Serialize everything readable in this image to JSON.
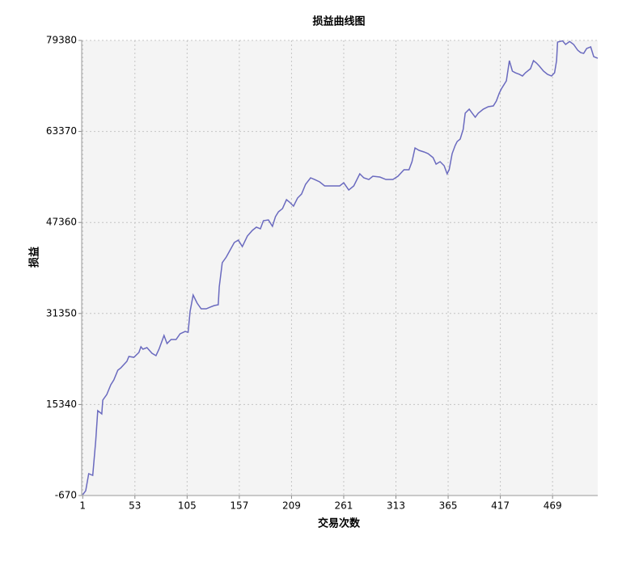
{
  "chart_data": {
    "type": "line",
    "title": "损益曲线图",
    "x_label": "交易次数",
    "y_label": "损益",
    "color": "#6a6abf",
    "grid": true,
    "xlim": [
      0,
      514
    ],
    "xticks": [
      1,
      53,
      105,
      157,
      209,
      261,
      313,
      365,
      417,
      469
    ],
    "ylim": [
      -670,
      79380
    ],
    "yticks": [
      -670,
      15340,
      31350,
      47360,
      63370,
      79380
    ],
    "x": [
      1,
      4,
      7,
      11,
      14,
      16,
      20,
      21,
      25,
      29,
      32,
      36,
      39,
      45,
      47,
      52,
      57,
      59,
      61,
      65,
      70,
      74,
      77,
      82,
      85,
      89,
      94,
      98,
      103,
      106,
      108,
      111,
      115,
      119,
      124,
      128,
      132,
      136,
      137,
      140,
      144,
      148,
      152,
      156,
      160,
      165,
      170,
      174,
      178,
      181,
      186,
      190,
      193,
      196,
      200,
      204,
      207,
      211,
      215,
      219,
      223,
      228,
      232,
      237,
      242,
      252,
      257,
      261,
      266,
      271,
      277,
      281,
      286,
      290,
      297,
      303,
      310,
      315,
      321,
      326,
      329,
      332,
      336,
      341,
      345,
      350,
      353,
      357,
      361,
      364,
      366,
      369,
      372,
      374,
      377,
      380,
      382,
      386,
      389,
      392,
      395,
      400,
      405,
      410,
      413,
      416,
      418,
      423,
      426,
      429,
      432,
      436,
      439,
      442,
      447,
      450,
      453,
      456,
      460,
      464,
      468,
      471,
      473,
      474,
      479,
      482,
      486,
      490,
      494,
      497,
      500,
      503,
      507,
      510,
      514
    ],
    "values": [
      -530,
      180,
      3170,
      2880,
      9000,
      14260,
      13690,
      16110,
      17100,
      18810,
      19660,
      21370,
      21790,
      22930,
      23790,
      23640,
      24500,
      25490,
      25070,
      25350,
      24350,
      23930,
      25070,
      27480,
      26060,
      26770,
      26770,
      27770,
      28190,
      28050,
      31750,
      34590,
      33170,
      32170,
      32170,
      32460,
      32740,
      32880,
      36010,
      40280,
      41270,
      42550,
      43830,
      44260,
      43120,
      44970,
      45970,
      46530,
      46250,
      47670,
      47810,
      46680,
      48380,
      49240,
      49800,
      51370,
      50940,
      50230,
      51650,
      52360,
      54070,
      55210,
      54920,
      54500,
      53790,
      53790,
      53790,
      54350,
      53070,
      53790,
      55920,
      55210,
      54920,
      55490,
      55350,
      54920,
      54920,
      55490,
      56630,
      56630,
      58050,
      60470,
      60040,
      59760,
      59470,
      58760,
      57620,
      58050,
      57340,
      55920,
      56630,
      59470,
      60890,
      61600,
      62030,
      63740,
      66580,
      67290,
      66580,
      65870,
      66580,
      67290,
      67720,
      67860,
      68710,
      70140,
      70850,
      72270,
      75820,
      73980,
      73690,
      73410,
      73120,
      73690,
      74400,
      75820,
      75400,
      74830,
      73980,
      73410,
      73120,
      73690,
      75820,
      79090,
      79300,
      78670,
      79200,
      78670,
      77670,
      77240,
      77100,
      77960,
      78240,
      76530,
      76250
    ]
  }
}
